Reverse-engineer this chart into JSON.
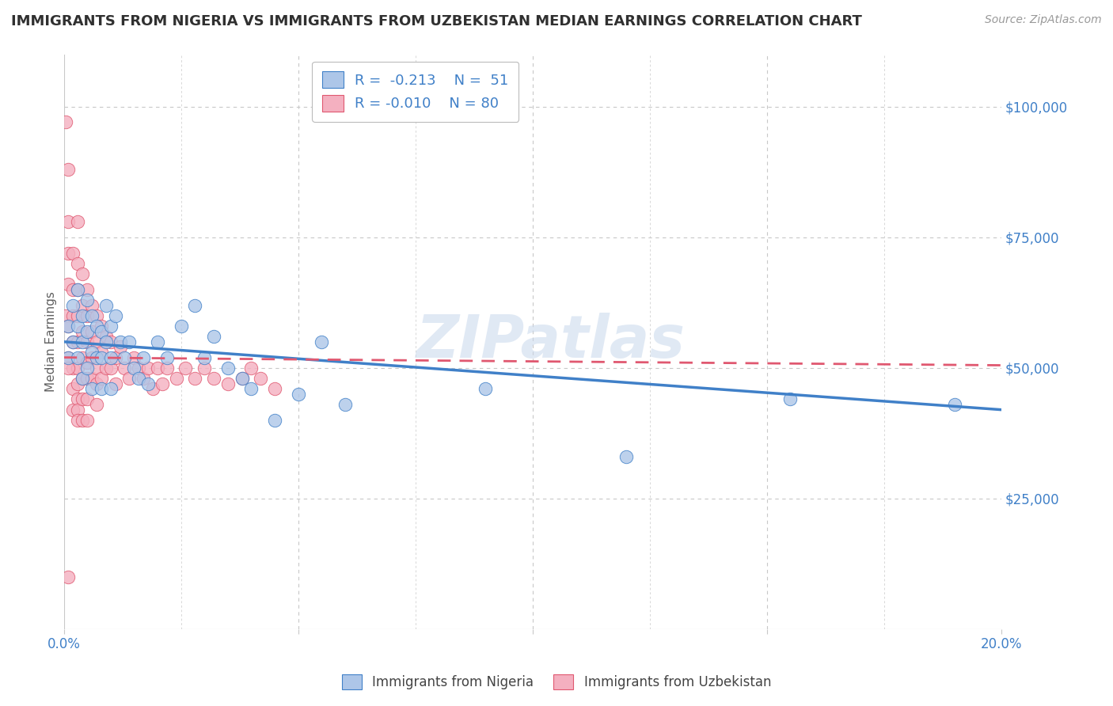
{
  "title": "IMMIGRANTS FROM NIGERIA VS IMMIGRANTS FROM UZBEKISTAN MEDIAN EARNINGS CORRELATION CHART",
  "source": "Source: ZipAtlas.com",
  "ylabel": "Median Earnings",
  "xlim": [
    0.0,
    0.2
  ],
  "ylim": [
    0,
    110000
  ],
  "yticks": [
    25000,
    50000,
    75000,
    100000
  ],
  "ytick_labels": [
    "$25,000",
    "$50,000",
    "$75,000",
    "$100,000"
  ],
  "xticks": [
    0.0,
    0.05,
    0.1,
    0.15,
    0.2
  ],
  "xtick_labels": [
    "0.0%",
    "",
    "",
    "",
    "20.0%"
  ],
  "background_color": "#ffffff",
  "grid_color": "#c8c8c8",
  "nigeria_color": "#adc6e8",
  "uzbekistan_color": "#f4b0c0",
  "nigeria_line_color": "#4080c8",
  "uzbekistan_line_color": "#e05870",
  "axis_color": "#4080c8",
  "title_color": "#303030",
  "watermark": "ZIPatlas",
  "nigeria_scatter_x": [
    0.001,
    0.001,
    0.002,
    0.002,
    0.003,
    0.003,
    0.003,
    0.004,
    0.004,
    0.004,
    0.005,
    0.005,
    0.005,
    0.006,
    0.006,
    0.006,
    0.007,
    0.007,
    0.008,
    0.008,
    0.008,
    0.009,
    0.009,
    0.01,
    0.01,
    0.01,
    0.011,
    0.012,
    0.013,
    0.014,
    0.015,
    0.016,
    0.017,
    0.018,
    0.02,
    0.022,
    0.025,
    0.028,
    0.03,
    0.032,
    0.035,
    0.038,
    0.04,
    0.045,
    0.05,
    0.055,
    0.06,
    0.09,
    0.12,
    0.155,
    0.19
  ],
  "nigeria_scatter_y": [
    58000,
    52000,
    62000,
    55000,
    65000,
    58000,
    52000,
    60000,
    55000,
    48000,
    63000,
    57000,
    50000,
    60000,
    53000,
    46000,
    58000,
    52000,
    57000,
    52000,
    46000,
    62000,
    55000,
    58000,
    52000,
    46000,
    60000,
    55000,
    52000,
    55000,
    50000,
    48000,
    52000,
    47000,
    55000,
    52000,
    58000,
    62000,
    52000,
    56000,
    50000,
    48000,
    46000,
    40000,
    45000,
    55000,
    43000,
    46000,
    33000,
    44000,
    43000
  ],
  "uzbekistan_scatter_x": [
    0.0005,
    0.0005,
    0.001,
    0.001,
    0.001,
    0.001,
    0.001,
    0.001,
    0.002,
    0.002,
    0.002,
    0.002,
    0.002,
    0.002,
    0.002,
    0.003,
    0.003,
    0.003,
    0.003,
    0.003,
    0.003,
    0.003,
    0.003,
    0.003,
    0.003,
    0.004,
    0.004,
    0.004,
    0.004,
    0.004,
    0.004,
    0.004,
    0.005,
    0.005,
    0.005,
    0.005,
    0.005,
    0.005,
    0.005,
    0.006,
    0.006,
    0.006,
    0.006,
    0.007,
    0.007,
    0.007,
    0.007,
    0.007,
    0.008,
    0.008,
    0.008,
    0.009,
    0.009,
    0.01,
    0.01,
    0.011,
    0.011,
    0.012,
    0.013,
    0.014,
    0.015,
    0.016,
    0.017,
    0.018,
    0.019,
    0.02,
    0.021,
    0.022,
    0.024,
    0.026,
    0.028,
    0.03,
    0.032,
    0.035,
    0.038,
    0.04,
    0.042,
    0.045,
    0.001,
    0.001
  ],
  "uzbekistan_scatter_y": [
    97000,
    60000,
    88000,
    78000,
    72000,
    66000,
    58000,
    52000,
    72000,
    65000,
    60000,
    55000,
    50000,
    46000,
    42000,
    78000,
    70000,
    65000,
    60000,
    55000,
    50000,
    47000,
    44000,
    42000,
    40000,
    68000,
    62000,
    57000,
    52000,
    48000,
    44000,
    40000,
    65000,
    60000,
    55000,
    51000,
    48000,
    44000,
    40000,
    62000,
    57000,
    52000,
    48000,
    60000,
    55000,
    50000,
    47000,
    43000,
    58000,
    53000,
    48000,
    56000,
    50000,
    55000,
    50000,
    52000,
    47000,
    54000,
    50000,
    48000,
    52000,
    50000,
    48000,
    50000,
    46000,
    50000,
    47000,
    50000,
    48000,
    50000,
    48000,
    50000,
    48000,
    47000,
    48000,
    50000,
    48000,
    46000,
    50000,
    10000
  ]
}
